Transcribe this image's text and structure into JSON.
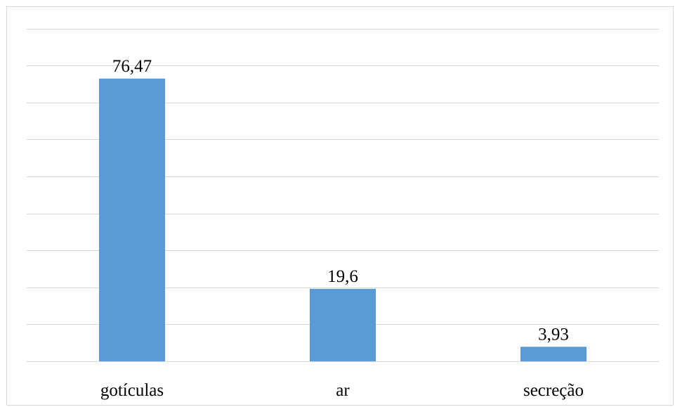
{
  "chart_data": {
    "type": "bar",
    "title": "",
    "xlabel": "",
    "ylabel": "",
    "categories": [
      "gotículas",
      "ar",
      "secreção"
    ],
    "values": [
      76.47,
      19.6,
      3.93
    ],
    "data_labels": [
      "76,47",
      "19,6",
      "3,93"
    ],
    "ylim": [
      0,
      90
    ],
    "y_gridline_step": 10,
    "y_axis_visible": false,
    "grid": true,
    "legend": "none",
    "colors": {
      "bar": "#5b9bd5",
      "grid": "#d9d9d9",
      "text": "#000000",
      "border": "#d9d9d9"
    }
  }
}
